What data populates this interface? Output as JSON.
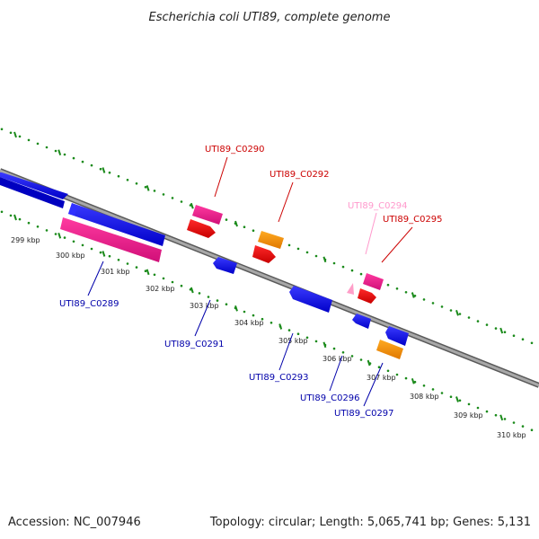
{
  "title": "Escherichia coli UTI89, complete genome",
  "footer": {
    "accession": "Accession: NC_007946",
    "topology": "Topology: circular; Length: 5,065,741 bp; Genes: 5,131"
  },
  "colors": {
    "backbone": "#808080",
    "ticks": "#1a8a1a",
    "blue": "#0000ff",
    "red": "#ff0000",
    "pink": "#ff1493",
    "light_pink": "#ff9ec8",
    "orange": "#ff9900",
    "label_red": "#cc0000",
    "label_blue": "#0000aa",
    "label_pink": "#ff99cc"
  },
  "scale": {
    "unit": "kbp",
    "tick_labels": [
      "299 kbp",
      "300 kbp",
      "301 kbp",
      "302 kbp",
      "303 kbp",
      "304 kbp",
      "305 kbp",
      "306 kbp",
      "307 kbp",
      "308 kbp",
      "309 kbp",
      "310 kbp"
    ]
  },
  "gene_labels": {
    "c0289": "UTI89_C0289",
    "c0290": "UTI89_C0290",
    "c0291": "UTI89_C0291",
    "c0292": "UTI89_C0292",
    "c0293": "UTI89_C0293",
    "c0294": "UTI89_C0294",
    "c0295": "UTI89_C0295",
    "c0296": "UTI89_C0296",
    "c0297": "UTI89_C0297"
  }
}
